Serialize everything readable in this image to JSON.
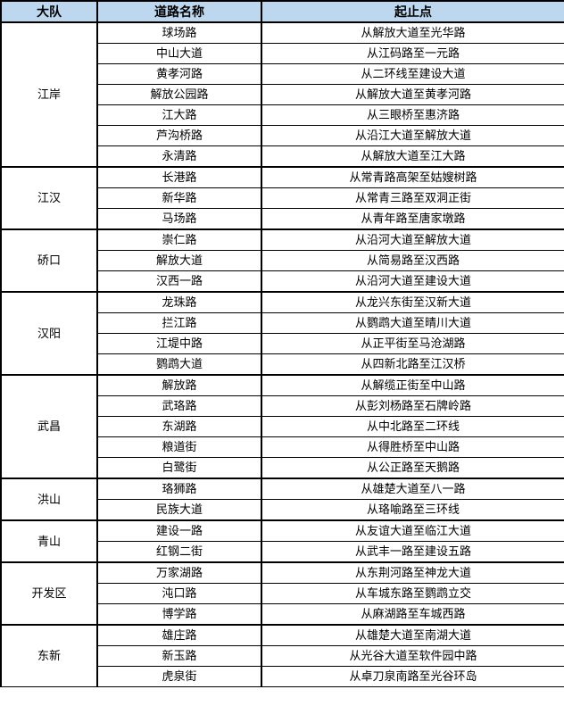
{
  "colors": {
    "header_bg": "#BDD7EE",
    "border": "#000000",
    "text": "#000000"
  },
  "table": {
    "headers": [
      "大队",
      "道路名称",
      "起止点"
    ],
    "groups": [
      {
        "brigade": "江岸",
        "roads": [
          {
            "name": "球场路",
            "range": "从解放大道至光华路"
          },
          {
            "name": "中山大道",
            "range": "从江码路至一元路"
          },
          {
            "name": "黄孝河路",
            "range": "从二环线至建设大道"
          },
          {
            "name": "解放公园路",
            "range": "从解放大道至黄孝河路"
          },
          {
            "name": "江大路",
            "range": "从三眼桥至惠济路"
          },
          {
            "name": "芦沟桥路",
            "range": "从沿江大道至解放大道"
          },
          {
            "name": "永清路",
            "range": "从解放大道至江大路"
          }
        ]
      },
      {
        "brigade": "江汉",
        "roads": [
          {
            "name": "长港路",
            "range": "从常青路高架至姑嫂树路"
          },
          {
            "name": "新华路",
            "range": "从常青三路至双洞正街"
          },
          {
            "name": "马场路",
            "range": "从青年路至唐家墩路"
          }
        ]
      },
      {
        "brigade": "硚口",
        "roads": [
          {
            "name": "崇仁路",
            "range": "从沿河大道至解放大道"
          },
          {
            "name": "解放大道",
            "range": "从简易路至汉西路"
          },
          {
            "name": "汉西一路",
            "range": "从沿河大道至建设大道"
          }
        ]
      },
      {
        "brigade": "汉阳",
        "roads": [
          {
            "name": "龙珠路",
            "range": "从龙兴东街至汉新大道"
          },
          {
            "name": "拦江路",
            "range": "从鹦鹉大道至晴川大道"
          },
          {
            "name": "江堤中路",
            "range": "从正平街至马沧湖路"
          },
          {
            "name": "鹦鹉大道",
            "range": "从四新北路至江汉桥"
          }
        ]
      },
      {
        "brigade": "武昌",
        "roads": [
          {
            "name": "解放路",
            "range": "从解缆正街至中山路"
          },
          {
            "name": "武珞路",
            "range": "从彭刘杨路至石牌岭路"
          },
          {
            "name": "东湖路",
            "range": "从中北路至二环线"
          },
          {
            "name": "粮道街",
            "range": "从得胜桥至中山路"
          },
          {
            "name": "白鹭街",
            "range": "从公正路至天鹅路"
          }
        ]
      },
      {
        "brigade": "洪山",
        "roads": [
          {
            "name": "珞狮路",
            "range": "从雄楚大道至八一路"
          },
          {
            "name": "民族大道",
            "range": "从珞喻路至三环线"
          }
        ]
      },
      {
        "brigade": "青山",
        "roads": [
          {
            "name": "建设一路",
            "range": "从友谊大道至临江大道"
          },
          {
            "name": "红钢二街",
            "range": "从武丰一路至建设五路"
          }
        ]
      },
      {
        "brigade": "开发区",
        "roads": [
          {
            "name": "万家湖路",
            "range": "从东荆河路至神龙大道"
          },
          {
            "name": "沌口路",
            "range": "从车城东路至鹦鹉立交"
          },
          {
            "name": "博学路",
            "range": "从麻湖路至车城西路"
          }
        ]
      },
      {
        "brigade": "东新",
        "roads": [
          {
            "name": "雄庄路",
            "range": "从雄楚大道至南湖大道"
          },
          {
            "name": "新玉路",
            "range": "从光谷大道至软件园中路"
          },
          {
            "name": "虎泉街",
            "range": "从卓刀泉南路至光谷环岛"
          }
        ]
      }
    ]
  }
}
